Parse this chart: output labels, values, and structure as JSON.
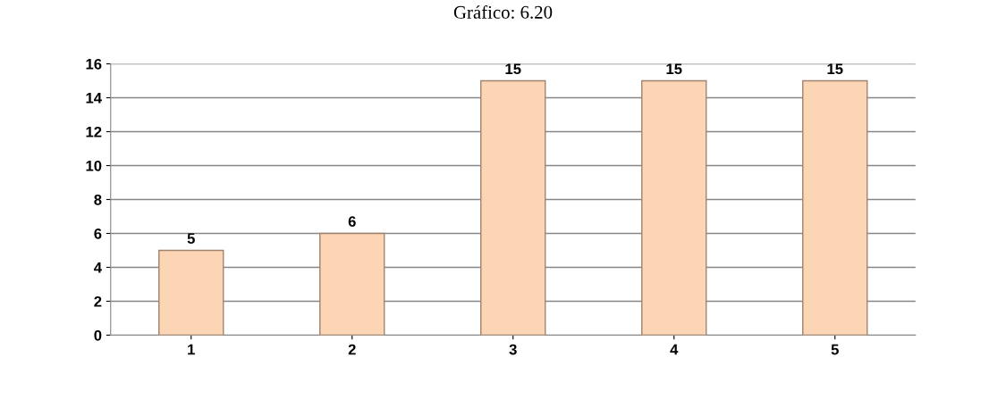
{
  "chart_data": {
    "type": "bar",
    "title": "Gráfico: 6.20",
    "categories": [
      "1",
      "2",
      "3",
      "4",
      "5"
    ],
    "values": [
      5,
      6,
      15,
      15,
      15
    ],
    "color": "#fcd5b5",
    "ylim": [
      0,
      16
    ],
    "yticks": [
      0,
      2,
      4,
      6,
      8,
      10,
      12,
      14,
      16
    ],
    "grid": "y",
    "data_labels": true
  }
}
